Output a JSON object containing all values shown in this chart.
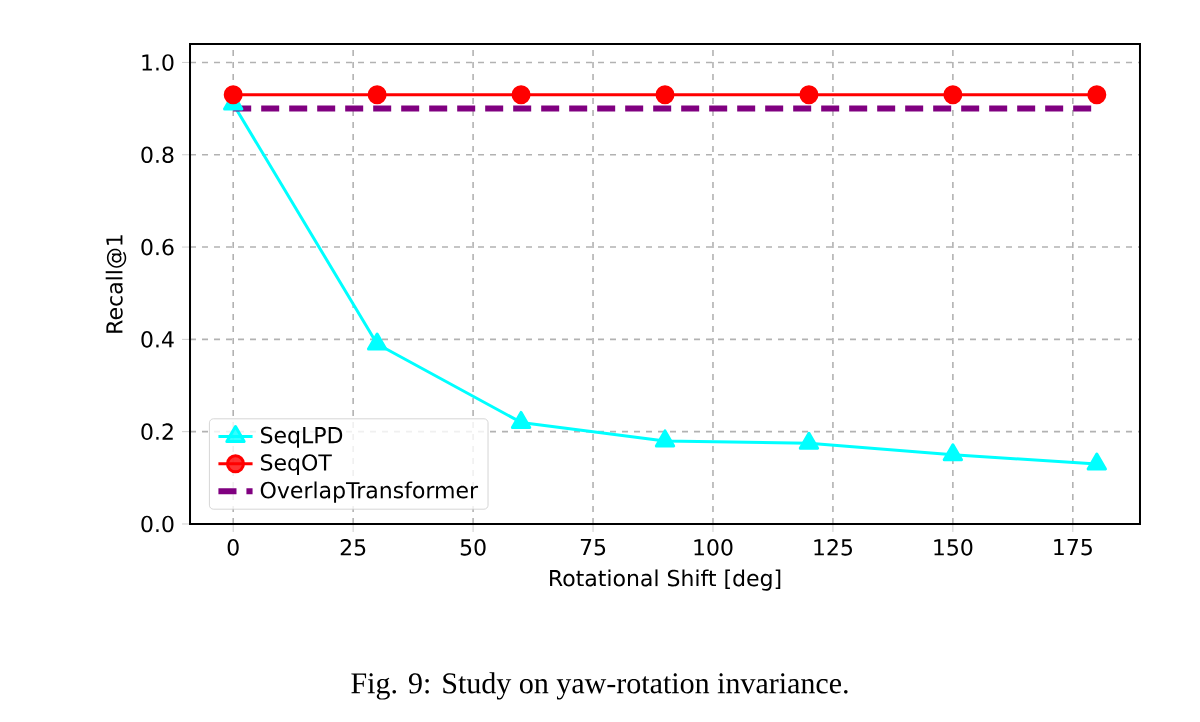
{
  "chart_data": {
    "type": "line",
    "xlabel": "Rotational Shift [deg]",
    "ylabel": "Recall@1",
    "x": [
      0,
      30,
      60,
      90,
      120,
      150,
      180
    ],
    "xlim": [
      -9,
      189
    ],
    "ylim": [
      0,
      1.04
    ],
    "xticks": [
      0,
      25,
      50,
      75,
      100,
      125,
      150,
      175
    ],
    "yticks": [
      {
        "value": 0,
        "label": "0.0"
      },
      {
        "value": 0.2,
        "label": "0.2"
      },
      {
        "value": 0.4,
        "label": "0.4"
      },
      {
        "value": 0.6,
        "label": "0.6"
      },
      {
        "value": 0.8,
        "label": "0.8"
      },
      {
        "value": 1.0,
        "label": "1.0"
      }
    ],
    "grid": true,
    "legend": "bottom left",
    "series": [
      {
        "name": "SeqLPD",
        "color": "#00ffff",
        "marker": "triangle",
        "line_style": "solid",
        "values": [
          0.91,
          0.39,
          0.22,
          0.18,
          0.175,
          0.15,
          0.13
        ]
      },
      {
        "name": "SeqOT",
        "color": "#ff0000",
        "marker": "circle",
        "line_style": "solid",
        "values": [
          0.93,
          0.93,
          0.93,
          0.93,
          0.93,
          0.93,
          0.93
        ]
      },
      {
        "name": "OverlapTransformer",
        "color": "#800080",
        "marker": "none",
        "line_style": "dashed",
        "values": [
          0.9,
          0.9,
          0.9,
          0.9,
          0.9,
          0.9,
          0.9
        ]
      }
    ],
    "annotations": [
      "Fig. 9: Study on yaw-rotation invariance."
    ]
  }
}
